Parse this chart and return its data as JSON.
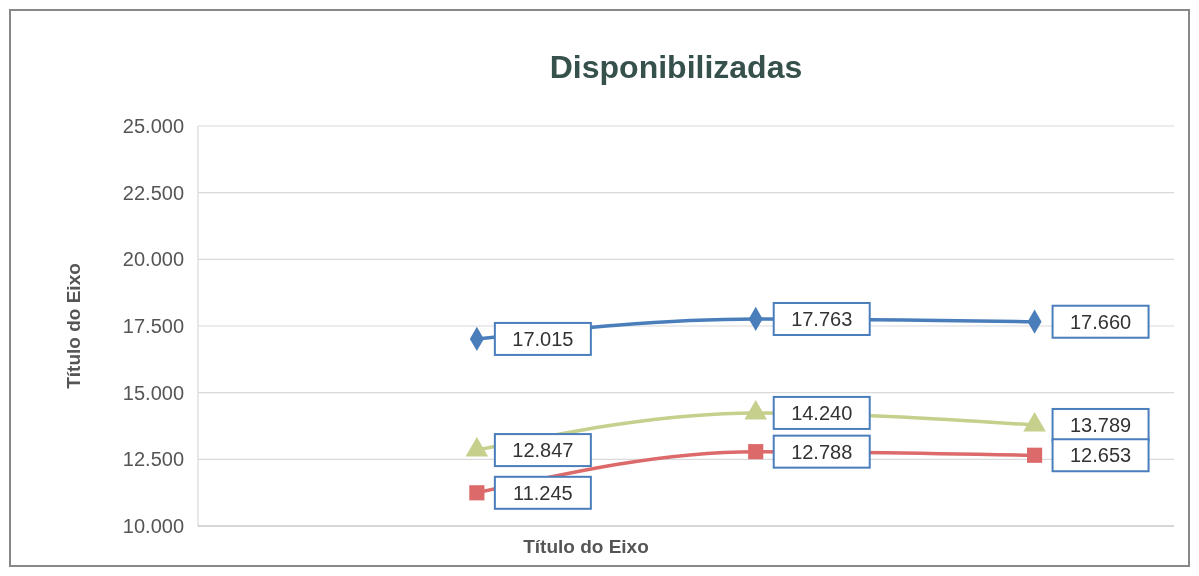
{
  "chart_data": {
    "type": "line",
    "title": "Disponibilizadas",
    "xlabel": "Título do Eixo",
    "ylabel": "Título do Eixo",
    "categories": [
      null,
      null,
      null
    ],
    "series": [
      {
        "color": "#4a7ebb",
        "marker": "diamond",
        "values": [
          17015,
          17763,
          17660
        ],
        "value_labels": [
          "17.015",
          "17.763",
          "17.660"
        ]
      },
      {
        "color": "#c6cf8c",
        "marker": "triangle",
        "values": [
          12847,
          14240,
          13789
        ],
        "value_labels": [
          "12.847",
          "14.240",
          "13.789"
        ]
      },
      {
        "color": "#dd6a6a",
        "marker": "square",
        "values": [
          11245,
          12788,
          12653
        ],
        "value_labels": [
          "11.245",
          "12.788",
          "12.653"
        ]
      }
    ],
    "ylim": [
      10000,
      25000
    ],
    "yticks": [
      {
        "value": 10000,
        "label": "10.000"
      },
      {
        "value": 12500,
        "label": "12.500"
      },
      {
        "value": 15000,
        "label": "15.000"
      },
      {
        "value": 17500,
        "label": "17.500"
      },
      {
        "value": 20000,
        "label": "20.000"
      },
      {
        "value": 22500,
        "label": "22.500"
      },
      {
        "value": 25000,
        "label": "25.000"
      }
    ],
    "grid": "y"
  }
}
